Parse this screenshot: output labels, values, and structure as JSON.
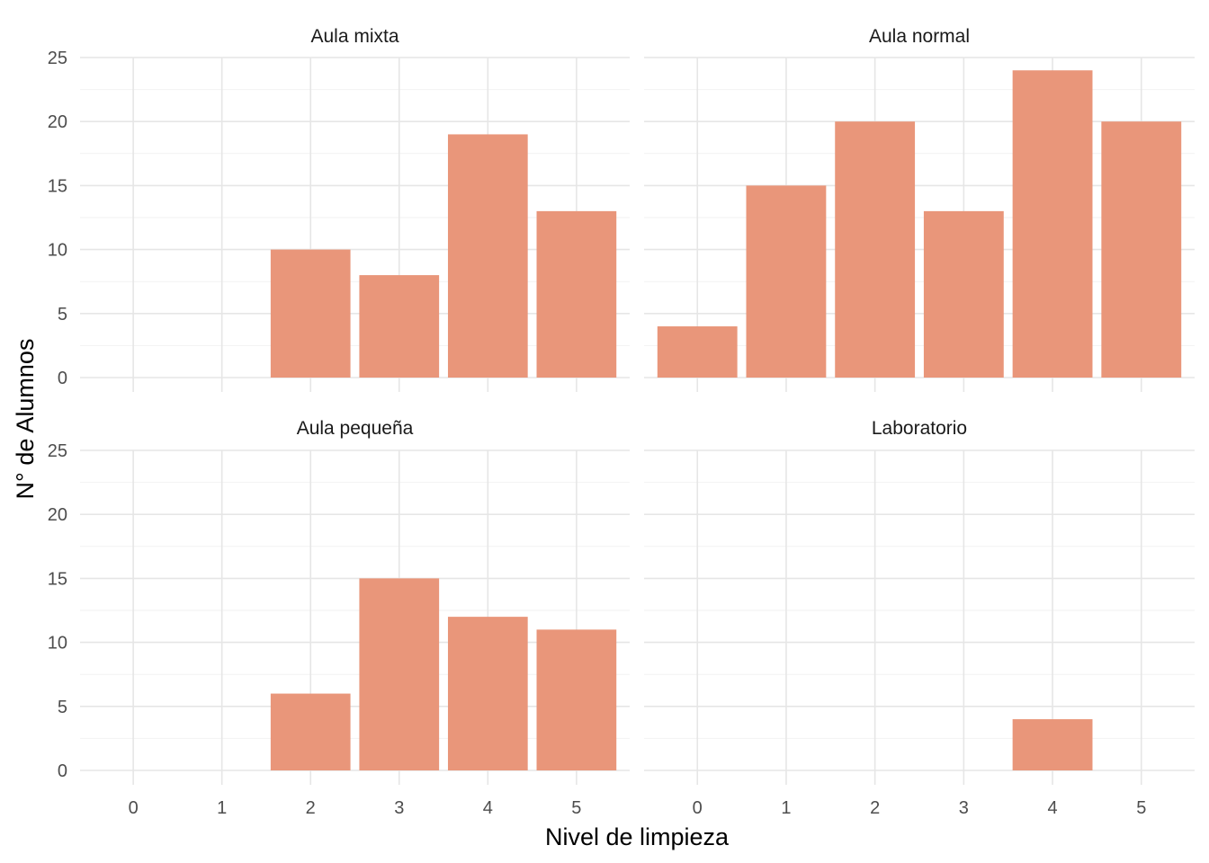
{
  "chart_data": {
    "type": "bar",
    "xlabel": "Nivel de limpieza",
    "ylabel": "N° de Alumnos",
    "x_ticks": [
      "0",
      "1",
      "2",
      "3",
      "4",
      "5"
    ],
    "y_ticks": [
      "0",
      "5",
      "10",
      "15",
      "20",
      "25"
    ],
    "xlim": [
      -0.6,
      5.6
    ],
    "ylim": [
      0,
      25
    ],
    "grid": true,
    "legend": "none",
    "bar_color": "#E9967A",
    "panels": [
      {
        "title": "Aula mixta",
        "x": [
          2,
          3,
          4,
          5
        ],
        "values": [
          10,
          8,
          19,
          13
        ]
      },
      {
        "title": "Aula normal",
        "x": [
          0,
          1,
          2,
          3,
          4,
          5
        ],
        "values": [
          4,
          15,
          20,
          13,
          24,
          20
        ]
      },
      {
        "title": "Aula pequeña",
        "x": [
          2,
          3,
          4,
          5
        ],
        "values": [
          6,
          15,
          12,
          11
        ]
      },
      {
        "title": "Laboratorio",
        "x": [
          4
        ],
        "values": [
          4
        ]
      }
    ]
  }
}
